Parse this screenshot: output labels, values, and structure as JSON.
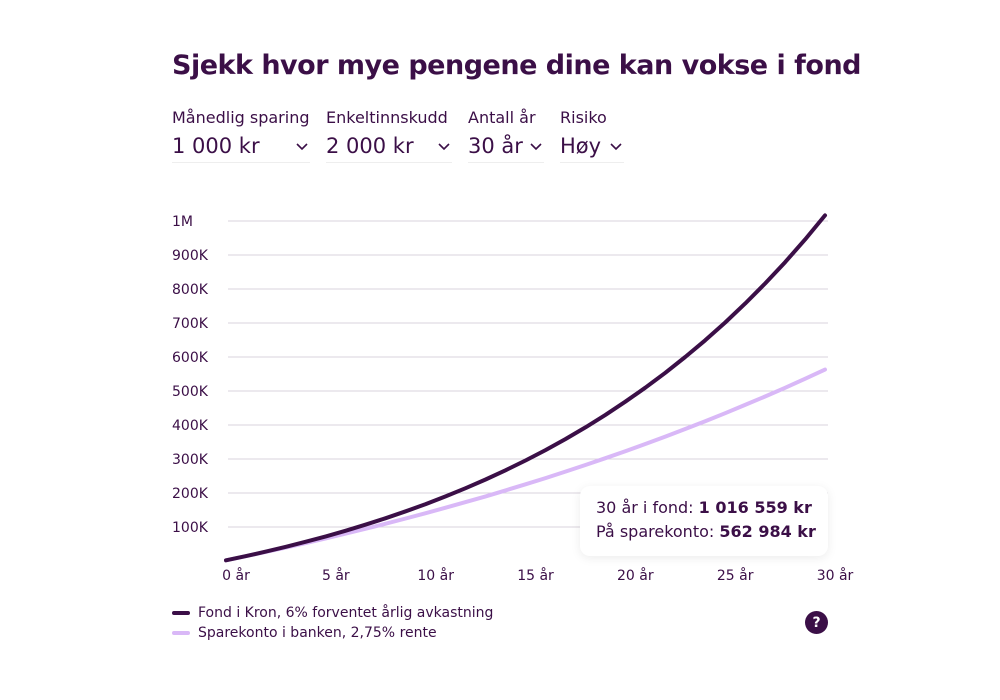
{
  "title": "Sjekk hvor mye pengene dine kan vokse i fond",
  "selectors": [
    {
      "label": "Månedlig sparing",
      "value": "1 000 kr"
    },
    {
      "label": "Enkeltinnskudd",
      "value": "2 000 kr"
    },
    {
      "label": "Antall år",
      "value": "30 år"
    },
    {
      "label": "Risiko",
      "value": "Høy"
    }
  ],
  "tooltip": {
    "fund_label": "30 år i fond:",
    "fund_value": "1 016 559 kr",
    "bank_label": "På sparekonto:",
    "bank_value": "562 984 kr"
  },
  "help_label": "?",
  "colors": {
    "fund": "#3b0f47",
    "bank": "#d9b8f7",
    "grid": "#d9d3dc"
  },
  "chart_data": {
    "type": "line",
    "xlim": [
      0,
      30
    ],
    "ylim": [
      0,
      1000000
    ],
    "grid": true,
    "legend_position": "bottom-left",
    "x_ticks": [
      0,
      5,
      10,
      15,
      20,
      25,
      30
    ],
    "x_tick_labels": [
      "0 år",
      "5 år",
      "10 år",
      "15 år",
      "20 år",
      "25 år",
      "30 år"
    ],
    "y_ticks": [
      100000,
      200000,
      300000,
      400000,
      500000,
      600000,
      700000,
      800000,
      900000,
      1000000
    ],
    "y_tick_labels": [
      "100K",
      "200K",
      "300K",
      "400K",
      "500K",
      "600K",
      "700K",
      "800K",
      "900K",
      "1M"
    ],
    "x": [
      0,
      1,
      2,
      3,
      4,
      5,
      6,
      7,
      8,
      9,
      10,
      11,
      12,
      13,
      14,
      15,
      16,
      17,
      18,
      19,
      20,
      21,
      22,
      23,
      24,
      25,
      26,
      27,
      28,
      29,
      30
    ],
    "series": [
      {
        "name": "Fond i Kron, 6% forventet årlig avkastning",
        "color": "#3b0f47",
        "values": [
          2000,
          14456,
          27679,
          41718,
          56623,
          72446,
          89246,
          107081,
          126017,
          146119,
          167461,
          190120,
          214174,
          239713,
          266827,
          295612,
          326172,
          358617,
          393062,
          429631,
          468455,
          509673,
          553433,
          599891,
          649214,
          701578,
          757171,
          816192,
          878852,
          945376,
          1016559
        ]
      },
      {
        "name": "Sparekonto i banken, 2,75% rente",
        "color": "#d9b8f7",
        "values": [
          2000,
          14208,
          26758,
          39654,
          52908,
          66537,
          80542,
          94936,
          109734,
          124939,
          140570,
          156639,
          173151,
          190128,
          207574,
          225506,
          243939,
          262883,
          282358,
          302373,
          322944,
          344088,
          365826,
          388163,
          411126,
          434726,
          458987,
          483919,
          509548,
          535890,
          562984
        ]
      }
    ]
  }
}
